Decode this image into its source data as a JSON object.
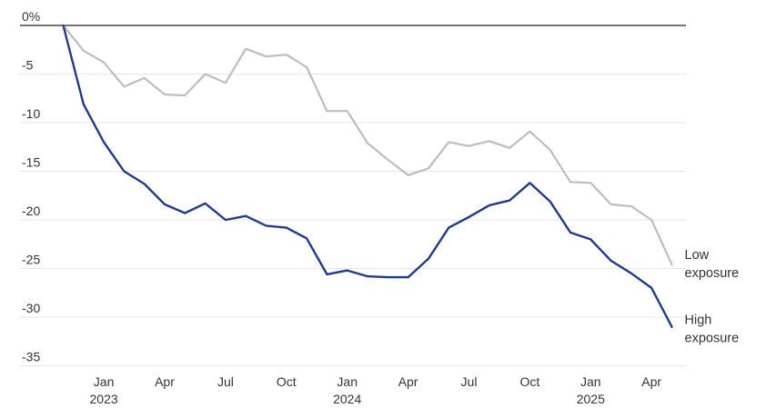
{
  "chart_data": {
    "type": "line",
    "title": "",
    "xlabel": "",
    "ylabel": "",
    "ylim": [
      -35,
      0
    ],
    "y_ticks": [
      "0%",
      "-5",
      "-10",
      "-15",
      "-20",
      "-25",
      "-30",
      "-35"
    ],
    "y_tick_values": [
      0,
      -5,
      -10,
      -15,
      -20,
      -25,
      -30,
      -35
    ],
    "grid": true,
    "x_ticks": [
      {
        "date": "2023-01",
        "label": "Jan",
        "year": "2023"
      },
      {
        "date": "2023-04",
        "label": "Apr",
        "year": ""
      },
      {
        "date": "2023-07",
        "label": "Jul",
        "year": ""
      },
      {
        "date": "2023-10",
        "label": "Oct",
        "year": ""
      },
      {
        "date": "2024-01",
        "label": "Jan",
        "year": "2024"
      },
      {
        "date": "2024-04",
        "label": "Apr",
        "year": ""
      },
      {
        "date": "2024-07",
        "label": "Jul",
        "year": ""
      },
      {
        "date": "2024-10",
        "label": "Oct",
        "year": ""
      },
      {
        "date": "2025-01",
        "label": "Jan",
        "year": "2025"
      },
      {
        "date": "2025-04",
        "label": "Apr",
        "year": ""
      }
    ],
    "x": [
      "2022-11",
      "2022-12",
      "2023-01",
      "2023-02",
      "2023-03",
      "2023-04",
      "2023-05",
      "2023-06",
      "2023-07",
      "2023-08",
      "2023-09",
      "2023-10",
      "2023-11",
      "2023-12",
      "2024-01",
      "2024-02",
      "2024-03",
      "2024-04",
      "2024-05",
      "2024-06",
      "2024-07",
      "2024-08",
      "2024-09",
      "2024-10",
      "2024-11",
      "2024-12",
      "2025-01",
      "2025-02",
      "2025-03",
      "2025-04",
      "2025-05"
    ],
    "series": [
      {
        "name": "Low exposure",
        "label_lines": [
          "Low",
          "exposure"
        ],
        "color": "#bdbdbd",
        "values": [
          0,
          -2.6,
          -3.8,
          -6.3,
          -5.4,
          -7.1,
          -7.2,
          -5.0,
          -5.9,
          -2.4,
          -3.2,
          -3.0,
          -4.3,
          -8.8,
          -8.8,
          -12.1,
          -13.8,
          -15.4,
          -14.7,
          -12.0,
          -12.4,
          -11.9,
          -12.6,
          -10.9,
          -12.8,
          -16.1,
          -16.2,
          -18.4,
          -18.6,
          -20.0,
          -24.6
        ]
      },
      {
        "name": "High exposure",
        "label_lines": [
          "High",
          "exposure"
        ],
        "color": "#1f3a93",
        "values": [
          0,
          -8.1,
          -12.0,
          -15.0,
          -16.3,
          -18.4,
          -19.3,
          -18.3,
          -20.0,
          -19.6,
          -20.6,
          -20.8,
          -21.9,
          -25.6,
          -25.2,
          -25.8,
          -25.9,
          -25.9,
          -24.0,
          -20.8,
          -19.7,
          -18.5,
          -18.0,
          -16.2,
          -18.1,
          -21.3,
          -22.0,
          -24.2,
          -25.5,
          -27.0,
          -31.0
        ]
      }
    ]
  }
}
